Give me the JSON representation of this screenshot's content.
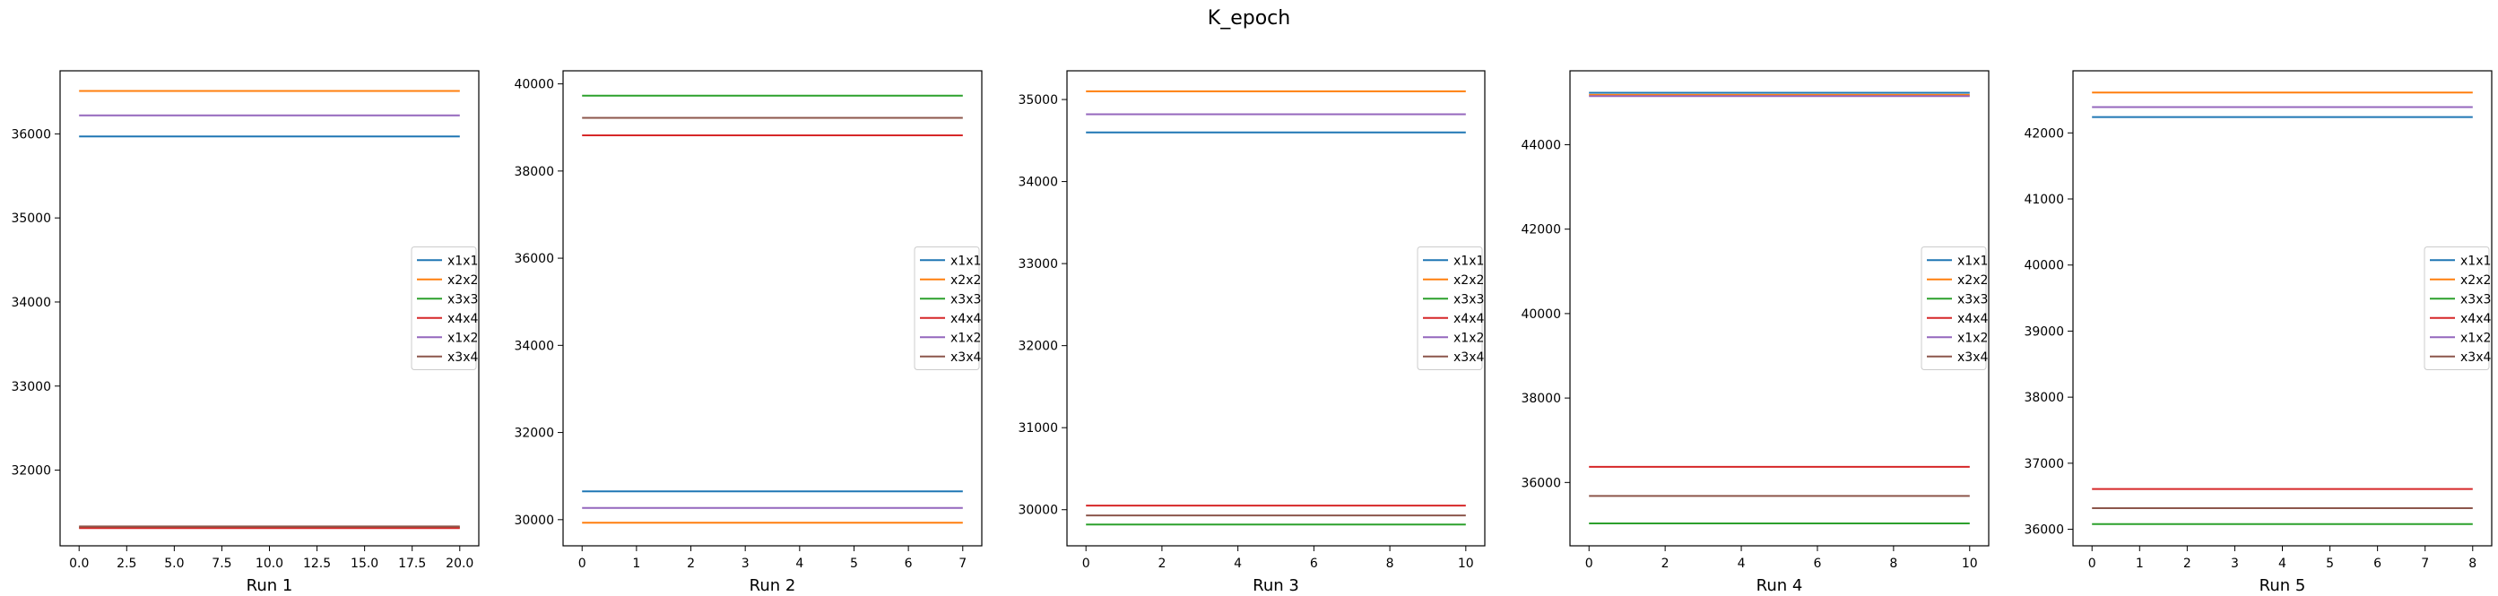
{
  "title": "K_epoch",
  "chart_data": [
    {
      "type": "line",
      "xlabel": "Run 1",
      "xlim": [
        -1,
        21
      ],
      "ylim": [
        31100,
        36750
      ],
      "xticks": [
        0,
        2.5,
        5,
        7.5,
        10,
        12.5,
        15,
        17.5,
        20
      ],
      "xtick_labels": [
        "0.0",
        "2.5",
        "5.0",
        "7.5",
        "10.0",
        "12.5",
        "15.0",
        "17.5",
        "20.0"
      ],
      "yticks": [
        32000,
        33000,
        34000,
        35000,
        36000
      ],
      "ytick_labels": [
        "32000",
        "33000",
        "34000",
        "35000",
        "36000"
      ],
      "legend": "right",
      "x": [
        0,
        20
      ],
      "series": [
        {
          "name": "x1x1",
          "color": "#1f77b4",
          "values": [
            35970,
            35970
          ]
        },
        {
          "name": "x2x2",
          "color": "#ff7f0e",
          "values": [
            36510,
            36510
          ]
        },
        {
          "name": "x3x3",
          "color": "#2ca02c",
          "values": [
            31320,
            31320
          ]
        },
        {
          "name": "x4x4",
          "color": "#d62728",
          "values": [
            31310,
            31310
          ]
        },
        {
          "name": "x1x2",
          "color": "#9467bd",
          "values": [
            36220,
            36220
          ]
        },
        {
          "name": "x3x4",
          "color": "#8c564b",
          "values": [
            31330,
            31330
          ]
        }
      ]
    },
    {
      "type": "line",
      "xlabel": "Run 2",
      "xlim": [
        -0.35,
        7.35
      ],
      "ylim": [
        29400,
        40300
      ],
      "xticks": [
        0,
        1,
        2,
        3,
        4,
        5,
        6,
        7
      ],
      "xtick_labels": [
        "0",
        "1",
        "2",
        "3",
        "4",
        "5",
        "6",
        "7"
      ],
      "yticks": [
        30000,
        32000,
        34000,
        36000,
        38000,
        40000
      ],
      "ytick_labels": [
        "30000",
        "32000",
        "34000",
        "36000",
        "38000",
        "40000"
      ],
      "legend": "right",
      "x": [
        0,
        7
      ],
      "series": [
        {
          "name": "x1x1",
          "color": "#1f77b4",
          "values": [
            30650,
            30650
          ]
        },
        {
          "name": "x2x2",
          "color": "#ff7f0e",
          "values": [
            29930,
            29930
          ]
        },
        {
          "name": "x3x3",
          "color": "#2ca02c",
          "values": [
            39730,
            39730
          ]
        },
        {
          "name": "x4x4",
          "color": "#d62728",
          "values": [
            38820,
            38820
          ]
        },
        {
          "name": "x1x2",
          "color": "#9467bd",
          "values": [
            30270,
            30270
          ]
        },
        {
          "name": "x3x4",
          "color": "#8c564b",
          "values": [
            39220,
            39220
          ]
        }
      ]
    },
    {
      "type": "line",
      "xlabel": "Run 3",
      "xlim": [
        -0.5,
        10.5
      ],
      "ylim": [
        29560,
        35350
      ],
      "xticks": [
        0,
        2,
        4,
        6,
        8,
        10
      ],
      "xtick_labels": [
        "0",
        "2",
        "4",
        "6",
        "8",
        "10"
      ],
      "yticks": [
        30000,
        31000,
        32000,
        33000,
        34000,
        35000
      ],
      "ytick_labels": [
        "30000",
        "31000",
        "32000",
        "33000",
        "34000",
        "35000"
      ],
      "legend": "right",
      "x": [
        0,
        10
      ],
      "series": [
        {
          "name": "x1x1",
          "color": "#1f77b4",
          "values": [
            34600,
            34600
          ]
        },
        {
          "name": "x2x2",
          "color": "#ff7f0e",
          "values": [
            35100,
            35100
          ]
        },
        {
          "name": "x3x3",
          "color": "#2ca02c",
          "values": [
            29820,
            29820
          ]
        },
        {
          "name": "x4x4",
          "color": "#d62728",
          "values": [
            30050,
            30050
          ]
        },
        {
          "name": "x1x2",
          "color": "#9467bd",
          "values": [
            34820,
            34820
          ]
        },
        {
          "name": "x3x4",
          "color": "#8c564b",
          "values": [
            29930,
            29930
          ]
        }
      ]
    },
    {
      "type": "line",
      "xlabel": "Run 4",
      "xlim": [
        -0.5,
        10.5
      ],
      "ylim": [
        34500,
        45750
      ],
      "xticks": [
        0,
        2,
        4,
        6,
        8,
        10
      ],
      "xtick_labels": [
        "0",
        "2",
        "4",
        "6",
        "8",
        "10"
      ],
      "yticks": [
        36000,
        38000,
        40000,
        42000,
        44000
      ],
      "ytick_labels": [
        "36000",
        "38000",
        "40000",
        "42000",
        "44000"
      ],
      "legend": "right",
      "x": [
        0,
        10
      ],
      "series": [
        {
          "name": "x1x1",
          "color": "#1f77b4",
          "values": [
            45230,
            45230
          ]
        },
        {
          "name": "x2x2",
          "color": "#ff7f0e",
          "values": [
            45180,
            45180
          ]
        },
        {
          "name": "x3x3",
          "color": "#2ca02c",
          "values": [
            35030,
            35030
          ]
        },
        {
          "name": "x4x4",
          "color": "#d62728",
          "values": [
            36370,
            36370
          ]
        },
        {
          "name": "x1x2",
          "color": "#9467bd",
          "values": [
            45150,
            45150
          ]
        },
        {
          "name": "x3x4",
          "color": "#8c564b",
          "values": [
            35680,
            35680
          ]
        }
      ]
    },
    {
      "type": "line",
      "xlabel": "Run 5",
      "xlim": [
        -0.4,
        8.4
      ],
      "ylim": [
        35750,
        42940
      ],
      "xticks": [
        0,
        1,
        2,
        3,
        4,
        5,
        6,
        7,
        8
      ],
      "xtick_labels": [
        "0",
        "1",
        "2",
        "3",
        "4",
        "5",
        "6",
        "7",
        "8"
      ],
      "yticks": [
        36000,
        37000,
        38000,
        39000,
        40000,
        41000,
        42000
      ],
      "ytick_labels": [
        "36000",
        "37000",
        "38000",
        "39000",
        "40000",
        "41000",
        "42000"
      ],
      "legend": "right",
      "x": [
        0,
        8
      ],
      "series": [
        {
          "name": "x1x1",
          "color": "#1f77b4",
          "values": [
            42240,
            42240
          ]
        },
        {
          "name": "x2x2",
          "color": "#ff7f0e",
          "values": [
            42610,
            42610
          ]
        },
        {
          "name": "x3x3",
          "color": "#2ca02c",
          "values": [
            36080,
            36080
          ]
        },
        {
          "name": "x4x4",
          "color": "#d62728",
          "values": [
            36610,
            36610
          ]
        },
        {
          "name": "x1x2",
          "color": "#9467bd",
          "values": [
            42390,
            42390
          ]
        },
        {
          "name": "x3x4",
          "color": "#8c564b",
          "values": [
            36320,
            36320
          ]
        }
      ]
    }
  ]
}
